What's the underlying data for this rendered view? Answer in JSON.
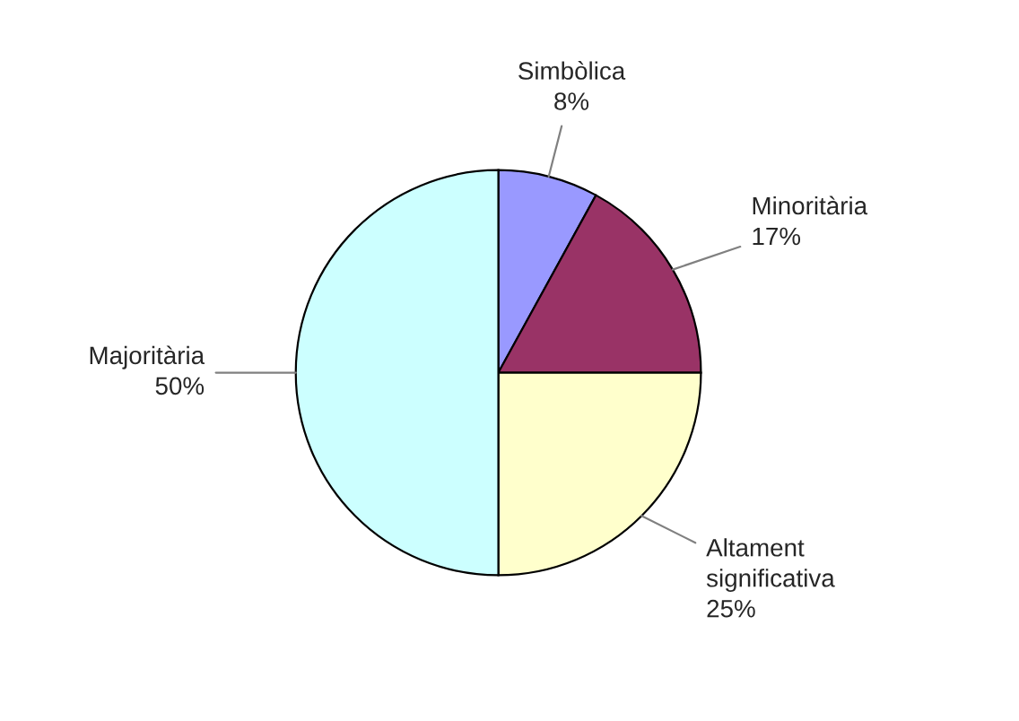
{
  "chart_data": {
    "type": "pie",
    "categories": [
      "Simbòlica",
      "Minoritària",
      "Altament significativa",
      "Majoritària"
    ],
    "values": [
      8,
      17,
      25,
      50
    ],
    "value_labels": [
      "8%",
      "17%",
      "25%",
      "50%"
    ],
    "colors": [
      "#9999ff",
      "#993366",
      "#ffffcc",
      "#ccffff"
    ],
    "legend": false
  }
}
